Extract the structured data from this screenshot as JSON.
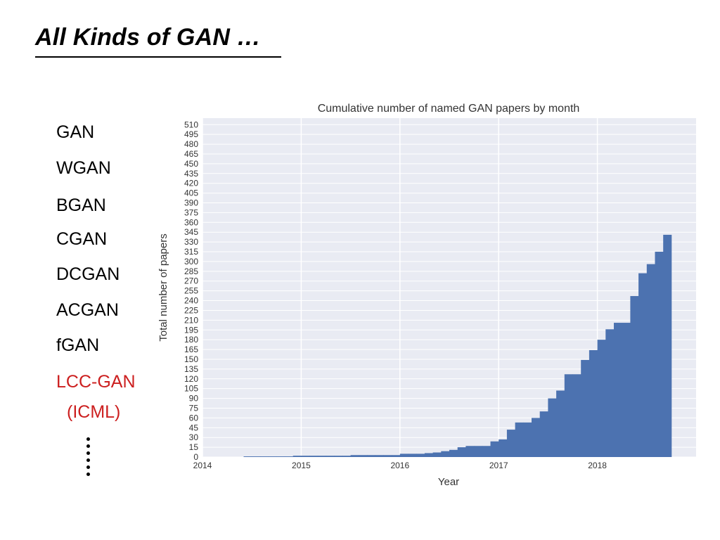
{
  "slide": {
    "title": "All Kinds of GAN …"
  },
  "gan_list": {
    "items": [
      "GAN",
      "WGAN",
      "BGAN",
      "CGAN",
      "DCGAN",
      "ACGAN",
      "fGAN"
    ],
    "highlighted": [
      "LCC-GAN",
      "(ICML)"
    ],
    "highlight_color": "#cc1f1f",
    "ellipsis": "……"
  },
  "chart_data": {
    "type": "bar",
    "title": "Cumulative number of named GAN papers by month",
    "xlabel": "Year",
    "ylabel": "Total number of papers",
    "xlim": [
      2014.0,
      2019.0
    ],
    "ylim": [
      0,
      520
    ],
    "xticks": [
      "2014",
      "2015",
      "2016",
      "2017",
      "2018"
    ],
    "ytick_step": 15,
    "grid": true,
    "bar_color": "#4c72b0",
    "background_color": "#e9ebf3",
    "months": [
      "2014-06",
      "2014-07",
      "2014-08",
      "2014-09",
      "2014-10",
      "2014-11",
      "2014-12",
      "2015-01",
      "2015-02",
      "2015-03",
      "2015-04",
      "2015-05",
      "2015-06",
      "2015-07",
      "2015-08",
      "2015-09",
      "2015-10",
      "2015-11",
      "2015-12",
      "2016-01",
      "2016-02",
      "2016-03",
      "2016-04",
      "2016-05",
      "2016-06",
      "2016-07",
      "2016-08",
      "2016-09",
      "2016-10",
      "2016-11",
      "2016-12",
      "2017-01",
      "2017-02",
      "2017-03",
      "2017-04",
      "2017-05",
      "2017-06",
      "2017-07",
      "2017-08",
      "2017-09",
      "2017-10",
      "2017-11",
      "2017-12",
      "2018-01",
      "2018-02",
      "2018-03",
      "2018-04",
      "2018-05",
      "2018-06",
      "2018-07",
      "2018-08",
      "2018-09"
    ],
    "values": [
      1,
      1,
      1,
      1,
      1,
      1,
      2,
      2,
      2,
      2,
      2,
      2,
      2,
      3,
      3,
      3,
      3,
      3,
      3,
      5,
      5,
      5,
      6,
      7,
      9,
      11,
      15,
      17,
      17,
      17,
      24,
      27,
      42,
      53,
      53,
      60,
      70,
      90,
      102,
      127,
      127,
      149,
      164,
      180,
      196,
      206,
      206,
      247,
      282,
      296,
      315,
      341
    ]
  }
}
